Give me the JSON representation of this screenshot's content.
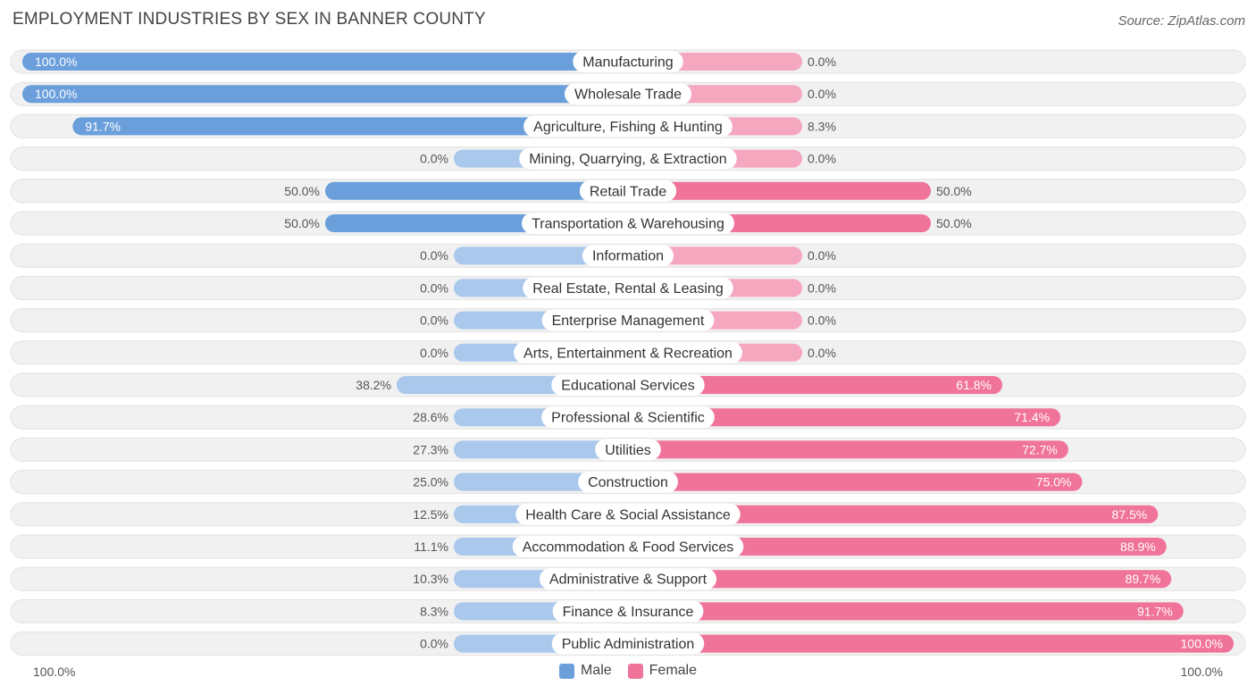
{
  "header": {
    "title": "EMPLOYMENT INDUSTRIES BY SEX IN BANNER COUNTY",
    "source": "Source: ZipAtlas.com"
  },
  "colors": {
    "male": "#6a9fdc",
    "male_light": "#a9c8ec",
    "female": "#f07399",
    "female_light": "#f6a7c0",
    "row_bg": "#f1f1f1"
  },
  "legend": {
    "male_label": "Male",
    "female_label": "Female"
  },
  "axis": {
    "left_label": "100.0%",
    "right_label": "100.0%"
  },
  "chart_data": {
    "type": "bar",
    "orientation": "horizontal-diverging",
    "title": "EMPLOYMENT INDUSTRIES BY SEX IN BANNER COUNTY",
    "xlim": [
      -100,
      100
    ],
    "categories": [
      "Manufacturing",
      "Wholesale Trade",
      "Agriculture, Fishing & Hunting",
      "Mining, Quarrying, & Extraction",
      "Retail Trade",
      "Transportation & Warehousing",
      "Information",
      "Real Estate, Rental & Leasing",
      "Enterprise Management",
      "Arts, Entertainment & Recreation",
      "Educational Services",
      "Professional & Scientific",
      "Utilities",
      "Construction",
      "Health Care & Social Assistance",
      "Accommodation & Food Services",
      "Administrative & Support",
      "Finance & Insurance",
      "Public Administration"
    ],
    "series": [
      {
        "name": "Male",
        "values": [
          100.0,
          100.0,
          91.7,
          0.0,
          50.0,
          50.0,
          0.0,
          0.0,
          0.0,
          0.0,
          38.2,
          28.6,
          27.3,
          25.0,
          12.5,
          11.1,
          10.3,
          8.3,
          0.0
        ],
        "labels": [
          "100.0%",
          "100.0%",
          "91.7%",
          "0.0%",
          "50.0%",
          "50.0%",
          "0.0%",
          "0.0%",
          "0.0%",
          "0.0%",
          "38.2%",
          "28.6%",
          "27.3%",
          "25.0%",
          "12.5%",
          "11.1%",
          "10.3%",
          "8.3%",
          "0.0%"
        ]
      },
      {
        "name": "Female",
        "values": [
          0.0,
          0.0,
          8.3,
          0.0,
          50.0,
          50.0,
          0.0,
          0.0,
          0.0,
          0.0,
          61.8,
          71.4,
          72.7,
          75.0,
          87.5,
          88.9,
          89.7,
          91.7,
          100.0
        ],
        "labels": [
          "0.0%",
          "0.0%",
          "8.3%",
          "0.0%",
          "50.0%",
          "50.0%",
          "0.0%",
          "0.0%",
          "0.0%",
          "0.0%",
          "61.8%",
          "71.4%",
          "72.7%",
          "75.0%",
          "87.5%",
          "88.9%",
          "89.7%",
          "91.7%",
          "100.0%"
        ]
      }
    ]
  }
}
